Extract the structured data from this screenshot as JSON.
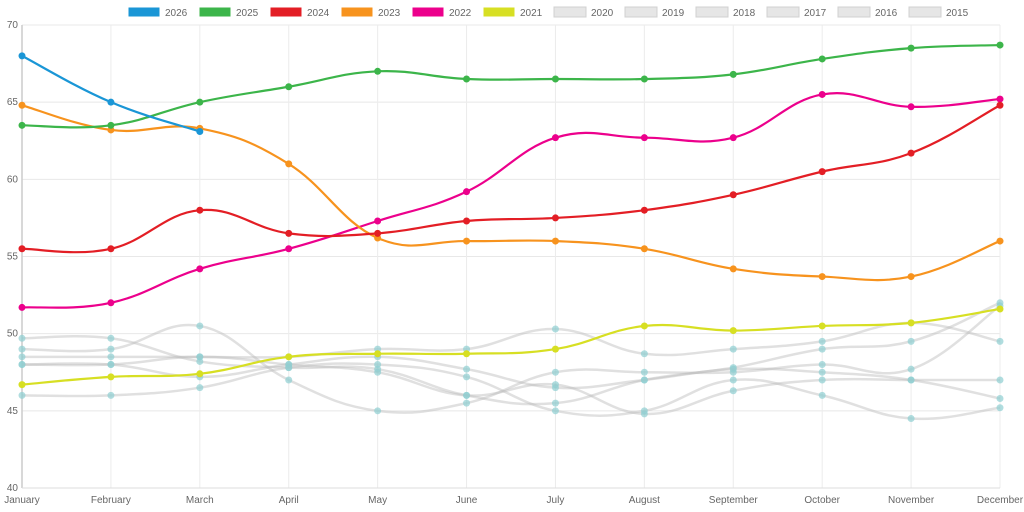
{
  "chart_data": {
    "type": "line",
    "title": "",
    "xlabel": "",
    "ylabel": "",
    "ylim": [
      40,
      70
    ],
    "yticks": [
      40,
      45,
      50,
      55,
      60,
      65,
      70
    ],
    "grid": true,
    "legend_position": "top-center",
    "categories": [
      "January",
      "February",
      "March",
      "April",
      "May",
      "June",
      "July",
      "August",
      "September",
      "October",
      "November",
      "December"
    ],
    "series": [
      {
        "name": "2026",
        "color": "#1a96d6",
        "hidden": false,
        "values": [
          68,
          65,
          63.1
        ]
      },
      {
        "name": "2025",
        "color": "#3cb54a",
        "hidden": false,
        "values": [
          63.5,
          63.5,
          65,
          66,
          67,
          66.5,
          66.5,
          66.5,
          66.8,
          67.8,
          68.5,
          68.7
        ]
      },
      {
        "name": "2024",
        "color": "#e31e25",
        "hidden": false,
        "values": [
          55.5,
          55.5,
          58,
          56.5,
          56.5,
          57.3,
          57.5,
          58,
          59,
          60.5,
          61.7,
          64.8
        ]
      },
      {
        "name": "2023",
        "color": "#f7931e",
        "hidden": false,
        "values": [
          64.8,
          63.2,
          63.3,
          61,
          56.2,
          56,
          56,
          55.5,
          54.2,
          53.7,
          53.7,
          56
        ]
      },
      {
        "name": "2022",
        "color": "#ec008c",
        "hidden": false,
        "values": [
          51.7,
          52,
          54.2,
          55.5,
          57.3,
          59.2,
          62.7,
          62.7,
          62.7,
          65.5,
          64.7,
          65.2
        ]
      },
      {
        "name": "2021",
        "color": "#d7df23",
        "hidden": false,
        "values": [
          46.7,
          47.2,
          47.4,
          48.5,
          48.7,
          48.7,
          49,
          50.5,
          50.2,
          50.5,
          50.7,
          51.6
        ]
      },
      {
        "name": "2020",
        "color": "#dddddd",
        "hidden": true,
        "values": [
          49.7,
          49.7,
          48.2,
          47.8,
          47.7,
          46,
          45.5,
          47,
          47.8,
          49,
          49.5,
          52
        ]
      },
      {
        "name": "2019",
        "color": "#dddddd",
        "hidden": true,
        "values": [
          49,
          49,
          50.5,
          47,
          45,
          45.5,
          47.5,
          47.5,
          47.5,
          48,
          47.7,
          51.8
        ]
      },
      {
        "name": "2018",
        "color": "#dddddd",
        "hidden": true,
        "values": [
          48.5,
          48.5,
          48.5,
          48.5,
          49,
          49,
          50.3,
          48.7,
          49,
          49.5,
          50.7,
          49.5
        ]
      },
      {
        "name": "2017",
        "color": "#dddddd",
        "hidden": true,
        "values": [
          48,
          48,
          47.2,
          48,
          48.5,
          47.7,
          46.5,
          47,
          47.7,
          47.5,
          47,
          45.8
        ]
      },
      {
        "name": "2016",
        "color": "#dddddd",
        "hidden": true,
        "values": [
          48,
          48,
          48.5,
          48,
          47.5,
          46,
          46.7,
          44.8,
          46.3,
          47,
          47,
          47
        ]
      },
      {
        "name": "2015",
        "color": "#dddddd",
        "hidden": true,
        "values": [
          46,
          46,
          46.5,
          47.8,
          48,
          47.2,
          45,
          45,
          47,
          46,
          44.5,
          45.2
        ]
      }
    ],
    "muted_point_color": "#8fcfd1"
  }
}
